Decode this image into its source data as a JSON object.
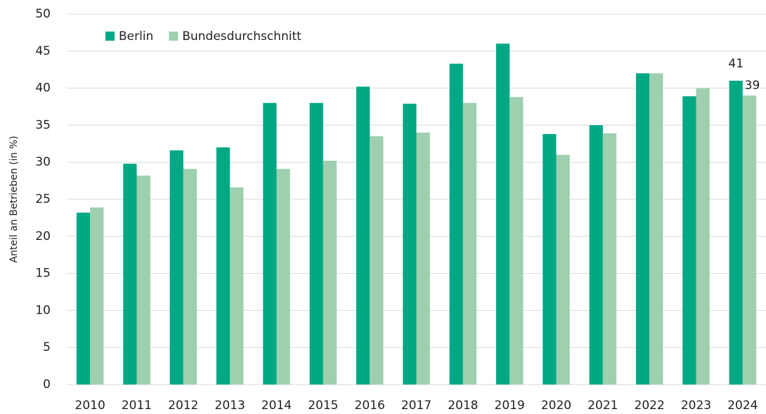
{
  "chart_data": {
    "type": "bar",
    "y_label": "Anteil an Betrieben (in %)",
    "categories": [
      "2010",
      "2011",
      "2012",
      "2013",
      "2014",
      "2015",
      "2016",
      "2017",
      "2018",
      "2019",
      "2020",
      "2021",
      "2022",
      "2023",
      "2024"
    ],
    "series": [
      {
        "name": "Berlin",
        "color": "#00a884",
        "values": [
          23.2,
          29.8,
          31.6,
          32,
          38,
          38,
          40.2,
          37.9,
          43.3,
          46,
          33.8,
          35,
          42,
          38.9,
          41
        ]
      },
      {
        "name": "Bundesdurchschnitt",
        "color": "#9ecfae",
        "values": [
          23.9,
          28.2,
          29.1,
          26.6,
          29.1,
          30.2,
          33.5,
          34,
          38,
          38.8,
          31,
          33.9,
          42,
          40,
          39
        ]
      }
    ],
    "ylim": [
      0,
      50
    ],
    "yticks": [
      0,
      5,
      10,
      15,
      20,
      25,
      30,
      35,
      40,
      45,
      50
    ],
    "grid": true,
    "legend": "top-left",
    "show_last_value_labels": true
  }
}
